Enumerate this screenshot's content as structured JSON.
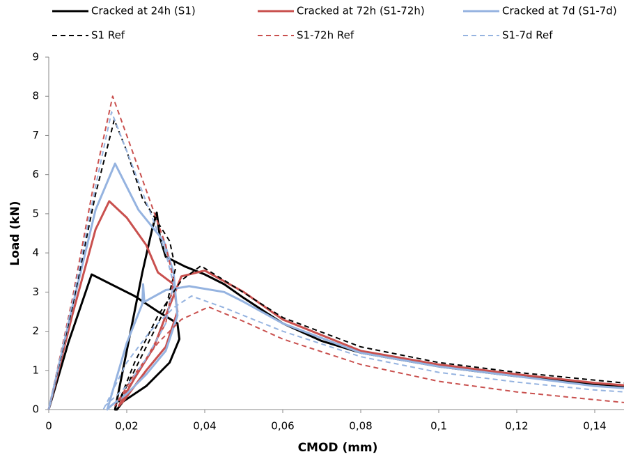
{
  "chart_data": {
    "type": "line",
    "xlabel": "CMOD (mm)",
    "ylabel": "Load (kN)",
    "xlim": [
      0,
      0.1475
    ],
    "ylim": [
      0,
      9
    ],
    "xticks": [
      0,
      {
        "value": 0.02,
        "label": "0,02"
      },
      {
        "value": 0.04,
        "label": "0,04"
      },
      {
        "value": 0.06,
        "label": "0,06"
      },
      {
        "value": 0.08,
        "label": "0,08"
      },
      {
        "value": 0.1,
        "label": "0,1"
      },
      {
        "value": 0.12,
        "label": "0,12"
      },
      {
        "value": 0.14,
        "label": "0,14"
      }
    ],
    "yticks": [
      0,
      1,
      2,
      3,
      4,
      5,
      6,
      7,
      8,
      9
    ],
    "grid": false,
    "series": [
      {
        "name": "Cracked at 24h (S1)",
        "color": "#000000",
        "line_style": "solid",
        "x": [
          0,
          0.005,
          0.011,
          0.016,
          0.022,
          0.028,
          0.033,
          0.0335,
          0.031,
          0.025,
          0.019,
          0.0175,
          0.017,
          0.02,
          0.024,
          0.0265,
          0.0277,
          0.0285,
          0.03,
          0.035,
          0.04,
          0.045,
          0.05,
          0.06,
          0.07,
          0.08,
          0.1,
          0.12,
          0.14,
          0.1475
        ],
        "values": [
          0,
          1.7,
          3.45,
          3.2,
          2.9,
          2.5,
          2.2,
          1.8,
          1.2,
          0.6,
          0.2,
          0,
          0,
          1.5,
          3.5,
          4.6,
          5.03,
          4.4,
          3.9,
          3.65,
          3.45,
          3.2,
          2.85,
          2.2,
          1.75,
          1.45,
          1.1,
          0.85,
          0.65,
          0.6
        ]
      },
      {
        "name": "Cracked at 72h (S1-72h)",
        "color": "#c9504e",
        "line_style": "solid",
        "x": [
          0,
          0.006,
          0.012,
          0.0155,
          0.02,
          0.025,
          0.028,
          0.032,
          0.033,
          0.03,
          0.025,
          0.019,
          0.018,
          0.022,
          0.027,
          0.03,
          0.034,
          0.04,
          0.05,
          0.06,
          0.08,
          0.1,
          0.12,
          0.14,
          0.1475
        ],
        "values": [
          0,
          2.4,
          4.6,
          5.32,
          4.9,
          4.2,
          3.5,
          3.2,
          2.5,
          1.6,
          1.0,
          0.2,
          0.1,
          0.8,
          1.6,
          2.4,
          3.4,
          3.55,
          3.0,
          2.3,
          1.5,
          1.15,
          0.9,
          0.68,
          0.62
        ]
      },
      {
        "name": "Cracked at 7d (S1-7d)",
        "color": "#95b3e0",
        "line_style": "solid",
        "x": [
          0,
          0.006,
          0.012,
          0.017,
          0.023,
          0.0295,
          0.032,
          0.033,
          0.03,
          0.025,
          0.02,
          0.016,
          0.015,
          0.02,
          0.024,
          0.0242,
          0.0245,
          0.03,
          0.036,
          0.045,
          0.05,
          0.06,
          0.08,
          0.1,
          0.12,
          0.14,
          0.1475
        ],
        "values": [
          0,
          2.6,
          5.1,
          6.28,
          5.1,
          4.3,
          3.5,
          2.4,
          1.5,
          0.9,
          0.4,
          0.1,
          0,
          1.7,
          2.7,
          3.2,
          2.75,
          3.05,
          3.15,
          3.0,
          2.75,
          2.2,
          1.45,
          1.1,
          0.85,
          0.6,
          0.55
        ]
      },
      {
        "name": "S1 Ref",
        "color": "#000000",
        "line_style": "dashed",
        "x": [
          0,
          0.006,
          0.012,
          0.0168,
          0.02,
          0.024,
          0.031,
          0.0325,
          0.03,
          0.025,
          0.02,
          0.018,
          0.022,
          0.028,
          0.034,
          0.039,
          0.045,
          0.06,
          0.08,
          0.1,
          0.12,
          0.14,
          0.1475
        ],
        "values": [
          0,
          2.6,
          5.5,
          7.4,
          6.6,
          5.4,
          4.3,
          3.6,
          2.6,
          1.6,
          0.6,
          0.2,
          1.2,
          2.4,
          3.3,
          3.67,
          3.3,
          2.35,
          1.6,
          1.2,
          0.95,
          0.75,
          0.68
        ]
      },
      {
        "name": "S1-72h Ref",
        "color": "#c9504e",
        "line_style": "dashed",
        "x": [
          0,
          0.006,
          0.012,
          0.0164,
          0.02,
          0.025,
          0.03,
          0.032,
          0.03,
          0.025,
          0.02,
          0.017,
          0.022,
          0.028,
          0.034,
          0.041,
          0.05,
          0.06,
          0.08,
          0.1,
          0.12,
          0.14,
          0.1475
        ],
        "values": [
          0,
          2.8,
          6.0,
          8.0,
          7.0,
          5.6,
          4.2,
          3.3,
          2.2,
          1.3,
          0.5,
          0.1,
          0.9,
          1.7,
          2.3,
          2.62,
          2.25,
          1.8,
          1.15,
          0.72,
          0.45,
          0.25,
          0.18
        ]
      },
      {
        "name": "S1-7d Ref",
        "color": "#95b3e0",
        "line_style": "dashed",
        "x": [
          0,
          0.006,
          0.012,
          0.0161,
          0.02,
          0.025,
          0.03,
          0.032,
          0.03,
          0.025,
          0.02,
          0.0145,
          0.014,
          0.02,
          0.026,
          0.032,
          0.0366,
          0.045,
          0.06,
          0.08,
          0.1,
          0.12,
          0.14,
          0.1475
        ],
        "values": [
          0,
          2.7,
          5.7,
          7.6,
          6.6,
          5.3,
          4.0,
          3.2,
          2.2,
          1.3,
          0.6,
          0.1,
          0,
          1.2,
          2.0,
          2.6,
          2.9,
          2.6,
          2.0,
          1.35,
          0.95,
          0.7,
          0.5,
          0.45
        ]
      }
    ]
  }
}
